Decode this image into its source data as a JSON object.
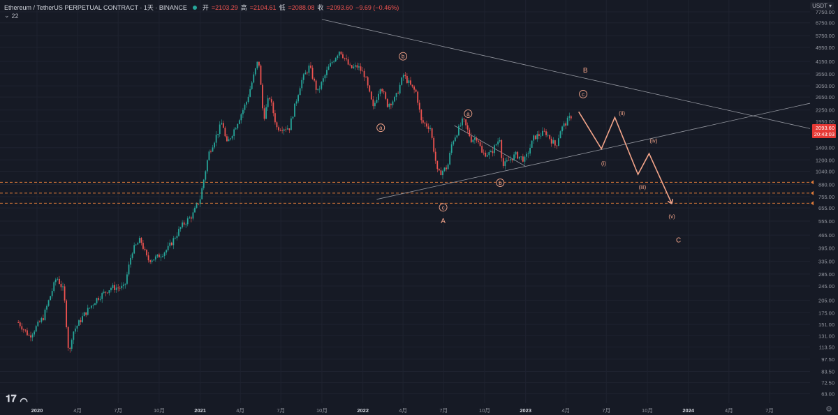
{
  "header": {
    "symbol_title": "Ethereum / TetherUS PERPETUAL CONTRACT · 1天 · BINANCE",
    "open_label": "开",
    "open_value": "=2103.29",
    "high_label": "高",
    "high_value": "=2104.61",
    "low_label": "低",
    "low_value": "=2088.08",
    "close_label": "收",
    "close_value": "=2093.60",
    "change_value": "−9.69 (−0.46%)",
    "indicator_value": "22",
    "currency": "USDT"
  },
  "price_tag": {
    "price": "2093.60",
    "countdown": "20:43:03"
  },
  "colors": {
    "background": "#161a25",
    "up": "#26a69a",
    "down": "#ef5350",
    "accent": "#f4a58a",
    "dashed": "#e07b39",
    "trendline": "#9598a1"
  },
  "chart_data": {
    "type": "candlestick",
    "y_scale": "log",
    "ylim": [
      56,
      9000
    ],
    "xlim": [
      "2019-10-10",
      "2024-09-30"
    ],
    "y_ticks": [
      63.0,
      72.5,
      83.5,
      97.5,
      113.5,
      131.0,
      151.0,
      175.0,
      205.0,
      245.0,
      285.0,
      335.0,
      395.0,
      465.0,
      555.0,
      655.0,
      755.0,
      880.0,
      1040.0,
      1200.0,
      1400.0,
      1650.0,
      1950.0,
      2250.0,
      2650.0,
      3050.0,
      3550.0,
      4150.0,
      4950.0,
      5750.0,
      6750.0,
      7750.0
    ],
    "y_tick_labels": [
      "63.00",
      "72.50",
      "83.50",
      "97.50",
      "113.50",
      "131.00",
      "151.00",
      "175.00",
      "205.00",
      "245.00",
      "285.00",
      "335.00",
      "395.00",
      "465.00",
      "555.00",
      "655.00",
      "755.00",
      "880.00",
      "1040.00",
      "1200.00",
      "1400.00",
      "1650.00",
      "1950.00",
      "2250.00",
      "2650.00",
      "3050.00",
      "3550.00",
      "4150.00",
      "4950.00",
      "5750.00",
      "6750.00",
      "7750.00"
    ],
    "x_ticks": [
      {
        "date": "2020-01-01",
        "label": "2020",
        "major": true
      },
      {
        "date": "2020-04-01",
        "label": "4月",
        "major": false
      },
      {
        "date": "2020-07-01",
        "label": "7月",
        "major": false
      },
      {
        "date": "2020-10-01",
        "label": "10月",
        "major": false
      },
      {
        "date": "2021-01-01",
        "label": "2021",
        "major": true
      },
      {
        "date": "2021-04-01",
        "label": "4月",
        "major": false
      },
      {
        "date": "2021-07-01",
        "label": "7月",
        "major": false
      },
      {
        "date": "2021-10-01",
        "label": "10月",
        "major": false
      },
      {
        "date": "2022-01-01",
        "label": "2022",
        "major": true
      },
      {
        "date": "2022-04-01",
        "label": "4月",
        "major": false
      },
      {
        "date": "2022-07-01",
        "label": "7月",
        "major": false
      },
      {
        "date": "2022-10-01",
        "label": "10月",
        "major": false
      },
      {
        "date": "2023-01-01",
        "label": "2023",
        "major": true
      },
      {
        "date": "2023-04-01",
        "label": "4月",
        "major": false
      },
      {
        "date": "2023-07-01",
        "label": "7月",
        "major": false
      },
      {
        "date": "2023-10-01",
        "label": "10月",
        "major": false
      },
      {
        "date": "2024-01-01",
        "label": "2024",
        "major": true
      },
      {
        "date": "2024-04-01",
        "label": "4月",
        "major": false
      },
      {
        "date": "2024-07-01",
        "label": "7月",
        "major": false
      }
    ],
    "price_path": [
      [
        "2019-11-20",
        155
      ],
      [
        "2019-12-15",
        130
      ],
      [
        "2020-01-15",
        165
      ],
      [
        "2020-02-14",
        275
      ],
      [
        "2020-03-01",
        230
      ],
      [
        "2020-03-13",
        100
      ],
      [
        "2020-03-20",
        135
      ],
      [
        "2020-04-15",
        170
      ],
      [
        "2020-05-15",
        210
      ],
      [
        "2020-06-15",
        240
      ],
      [
        "2020-07-15",
        240
      ],
      [
        "2020-08-01",
        380
      ],
      [
        "2020-08-20",
        440
      ],
      [
        "2020-09-05",
        340
      ],
      [
        "2020-09-25",
        350
      ],
      [
        "2020-10-20",
        390
      ],
      [
        "2020-11-20",
        520
      ],
      [
        "2020-12-15",
        600
      ],
      [
        "2021-01-01",
        740
      ],
      [
        "2021-01-20",
        1300
      ],
      [
        "2021-02-20",
        1950
      ],
      [
        "2021-03-01",
        1450
      ],
      [
        "2021-03-20",
        1800
      ],
      [
        "2021-04-15",
        2500
      ],
      [
        "2021-05-12",
        4300
      ],
      [
        "2021-05-23",
        2000
      ],
      [
        "2021-06-05",
        2700
      ],
      [
        "2021-06-22",
        1800
      ],
      [
        "2021-07-20",
        1800
      ],
      [
        "2021-08-15",
        3200
      ],
      [
        "2021-09-03",
        3900
      ],
      [
        "2021-09-21",
        2800
      ],
      [
        "2021-10-15",
        3800
      ],
      [
        "2021-11-10",
        4800
      ],
      [
        "2021-12-04",
        3800
      ],
      [
        "2021-12-20",
        3900
      ],
      [
        "2022-01-05",
        3500
      ],
      [
        "2022-01-24",
        2300
      ],
      [
        "2022-02-10",
        3100
      ],
      [
        "2022-02-24",
        2400
      ],
      [
        "2022-03-15",
        2600
      ],
      [
        "2022-04-02",
        3500
      ],
      [
        "2022-04-20",
        3000
      ],
      [
        "2022-05-01",
        2800
      ],
      [
        "2022-05-12",
        1950
      ],
      [
        "2022-06-01",
        1800
      ],
      [
        "2022-06-18",
        1000
      ],
      [
        "2022-07-10",
        1100
      ],
      [
        "2022-07-20",
        1500
      ],
      [
        "2022-08-14",
        1990
      ],
      [
        "2022-09-01",
        1550
      ],
      [
        "2022-09-15",
        1600
      ],
      [
        "2022-09-25",
        1300
      ],
      [
        "2022-10-15",
        1300
      ],
      [
        "2022-11-05",
        1600
      ],
      [
        "2022-11-10",
        1100
      ],
      [
        "2022-11-25",
        1200
      ],
      [
        "2022-12-10",
        1280
      ],
      [
        "2022-12-31",
        1200
      ],
      [
        "2023-01-20",
        1600
      ],
      [
        "2023-02-15",
        1700
      ],
      [
        "2023-03-10",
        1420
      ],
      [
        "2023-03-20",
        1750
      ],
      [
        "2023-04-14",
        2100
      ]
    ],
    "trendlines": [
      {
        "from": [
          "2021-10-01",
          7050
        ],
        "to": [
          "2024-09-30",
          1780
        ]
      },
      {
        "from": [
          "2022-02-01",
          730
        ],
        "to": [
          "2024-09-30",
          2450
        ]
      },
      {
        "from": [
          "2022-07-25",
          1850
        ],
        "to": [
          "2022-12-31",
          1110
        ]
      }
    ],
    "support_levels": [
      905,
      790,
      695
    ],
    "projection": [
      [
        "2023-04-30",
        2200
      ],
      [
        "2023-06-20",
        1380
      ],
      [
        "2023-07-20",
        2050
      ],
      [
        "2023-09-10",
        1000
      ],
      [
        "2023-10-05",
        1300
      ],
      [
        "2023-11-25",
        690
      ]
    ],
    "wave_labels": [
      {
        "text": "b",
        "date": "2022-04-01",
        "price": 4430,
        "circled": true
      },
      {
        "text": "a",
        "date": "2022-02-10",
        "price": 1800,
        "circled": true
      },
      {
        "text": "a",
        "date": "2022-08-25",
        "price": 2150,
        "circled": true
      },
      {
        "text": "c",
        "date": "2023-05-10",
        "price": 2750,
        "circled": true
      },
      {
        "text": "b",
        "date": "2022-11-05",
        "price": 900,
        "circled": true
      },
      {
        "text": "c",
        "date": "2022-06-30",
        "price": 660,
        "circled": true
      },
      {
        "text": "B",
        "date": "2023-05-15",
        "price": 3700,
        "circled": false
      },
      {
        "text": "A",
        "date": "2022-06-30",
        "price": 555,
        "circled": false
      },
      {
        "text": "C",
        "date": "2023-12-10",
        "price": 435,
        "circled": false
      },
      {
        "text": "(ii)",
        "date": "2023-08-05",
        "price": 2170,
        "circled": false
      },
      {
        "text": "(i)",
        "date": "2023-06-25",
        "price": 1150,
        "circled": false
      },
      {
        "text": "(iv)",
        "date": "2023-10-15",
        "price": 1530,
        "circled": false
      },
      {
        "text": "(iii)",
        "date": "2023-09-20",
        "price": 855,
        "circled": false
      },
      {
        "text": "(v)",
        "date": "2023-11-25",
        "price": 590,
        "circled": false
      }
    ]
  }
}
